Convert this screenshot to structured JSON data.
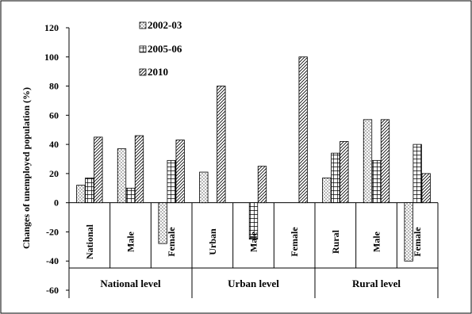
{
  "chart_data": {
    "type": "bar",
    "ylabel": "Changes of unemployed population (%)",
    "ylim": [
      -60,
      120
    ],
    "yticks": [
      -60,
      -40,
      -20,
      0,
      20,
      40,
      60,
      80,
      100,
      120
    ],
    "grid": false,
    "legend_position": "top-center",
    "groups": [
      {
        "label": "National level",
        "categories": [
          "National",
          "Male",
          "Female"
        ]
      },
      {
        "label": "Urban level",
        "categories": [
          "Urban",
          "Male",
          "Female"
        ]
      },
      {
        "label": "Rural level",
        "categories": [
          "Rural",
          "Male",
          "Female"
        ]
      }
    ],
    "series": [
      {
        "name": "2002-03",
        "pattern": "dots",
        "values": [
          12,
          37,
          -28,
          21,
          0,
          0,
          17,
          57,
          -40
        ]
      },
      {
        "name": "2005-06",
        "pattern": "grid",
        "values": [
          17,
          10,
          29,
          0,
          -25,
          0,
          34,
          29,
          40
        ]
      },
      {
        "name": "2010",
        "pattern": "diagonal",
        "values": [
          45,
          46,
          43,
          80,
          25,
          100,
          42,
          57,
          20
        ]
      }
    ]
  }
}
